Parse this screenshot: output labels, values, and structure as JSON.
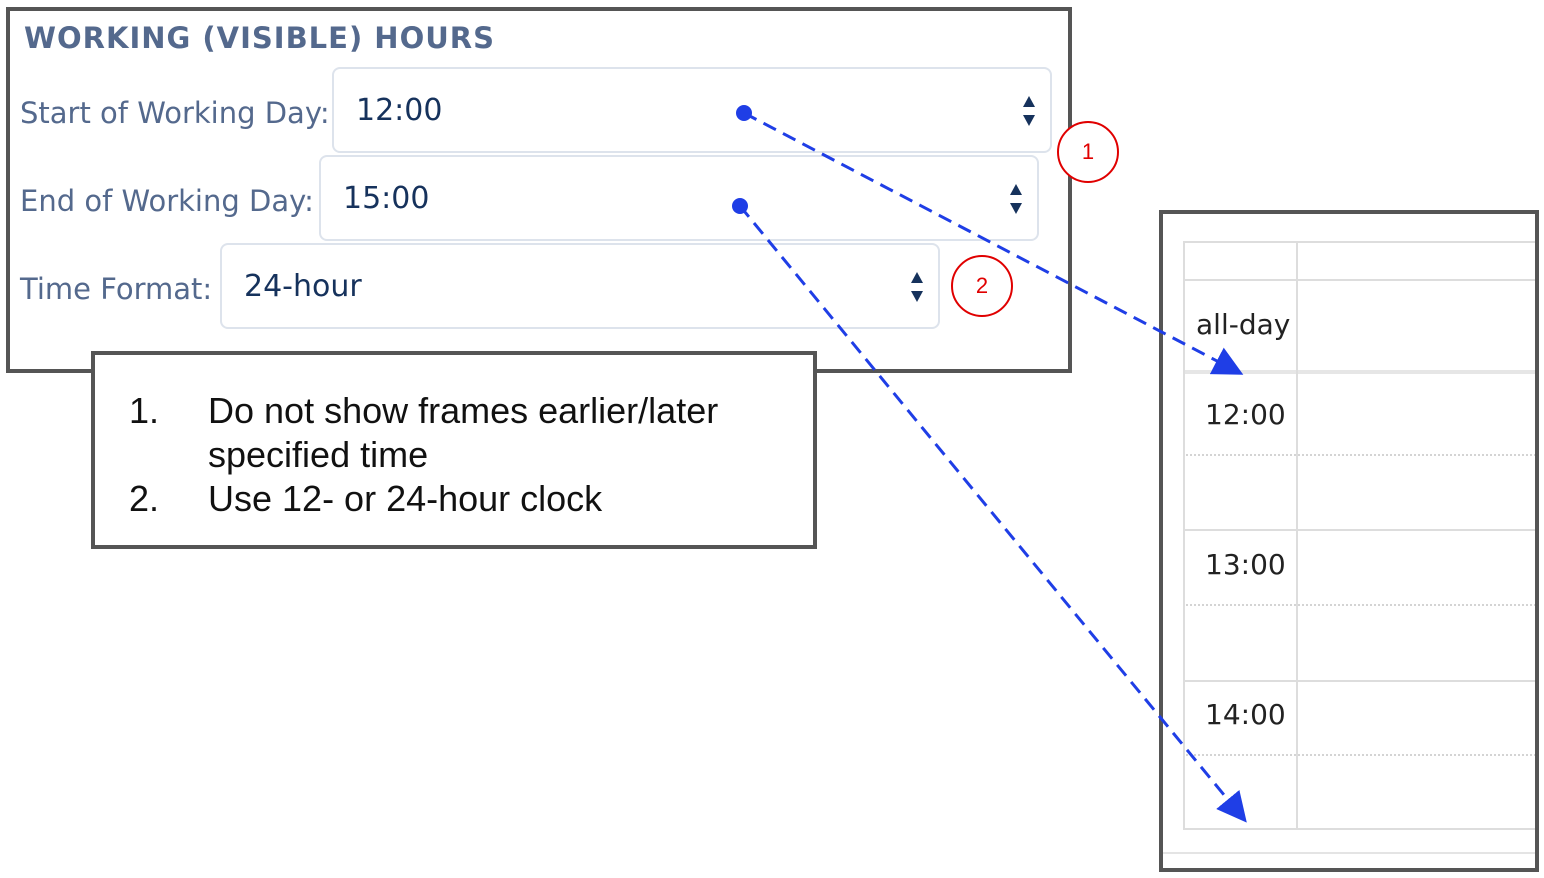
{
  "settings": {
    "title": "WORKING (VISIBLE) HOURS",
    "fields": [
      {
        "label": "Start of Working Day:",
        "value": "12:00"
      },
      {
        "label": "End of Working Day:",
        "value": "15:00"
      },
      {
        "label": "Time Format:",
        "value": "24-hour"
      }
    ]
  },
  "callouts": {
    "badge_1": "1",
    "badge_2": "2"
  },
  "notes": {
    "items": [
      {
        "number": "1.",
        "line1": "Do not show frames earlier/later",
        "line2": "specified time"
      },
      {
        "number": "2.",
        "line1": "Use 12- or 24-hour clock"
      }
    ]
  },
  "calendar": {
    "all_day_label": "all-day",
    "time_slots": [
      "12:00",
      "13:00",
      "14:00"
    ]
  },
  "colors": {
    "label_blue": "#54698d",
    "value_navy": "#16325c",
    "connector_blue": "#1f3ee6",
    "badge_red": "#e00000"
  }
}
